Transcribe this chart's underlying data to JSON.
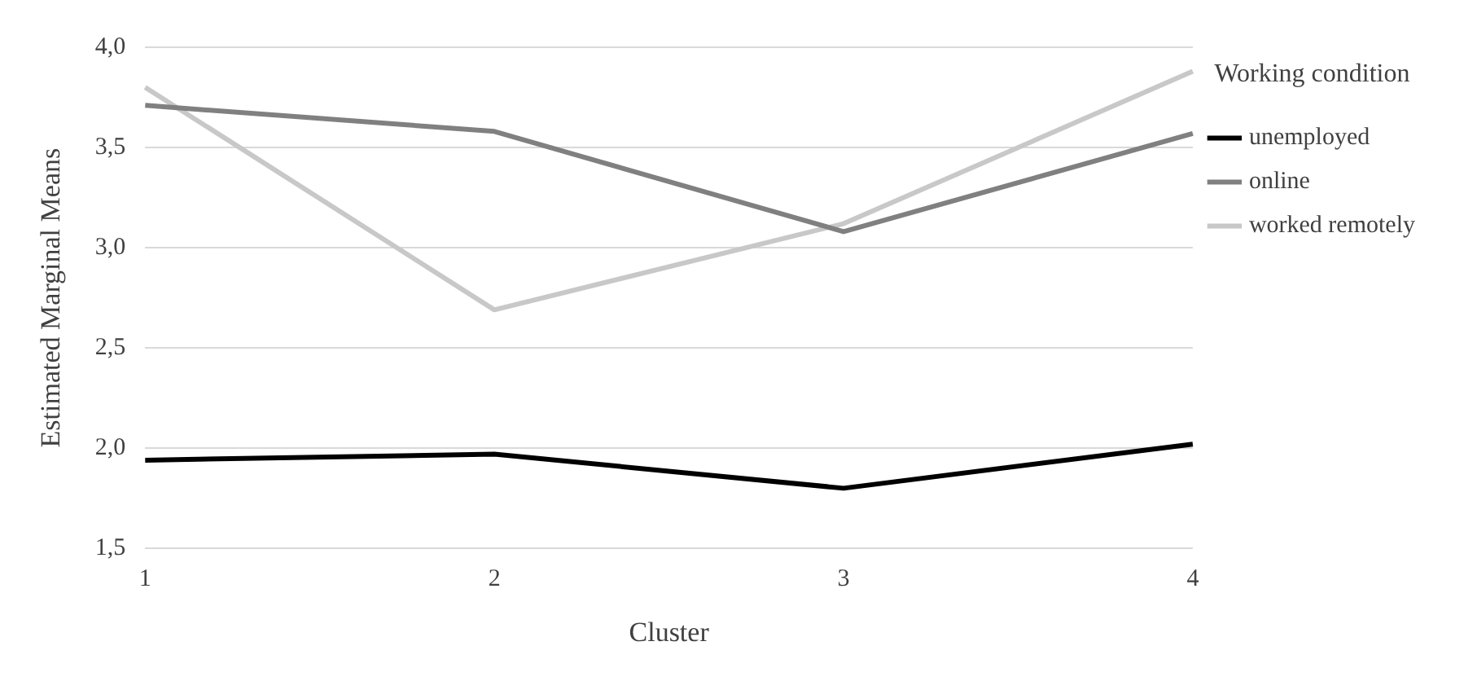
{
  "chart_data": {
    "type": "line",
    "xlabel": "Cluster",
    "ylabel": "Estimated Marginal Means",
    "legend_title": "Working condition",
    "categories": [
      "1",
      "2",
      "3",
      "4"
    ],
    "series": [
      {
        "name": "unemployed",
        "color": "#000000",
        "values": [
          1.94,
          1.97,
          1.8,
          2.02
        ]
      },
      {
        "name": "online",
        "color": "#808080",
        "values": [
          3.71,
          3.58,
          3.08,
          3.57
        ]
      },
      {
        "name": "worked remotely",
        "color": "#c8c8c8",
        "values": [
          3.8,
          2.69,
          3.12,
          3.88
        ]
      }
    ],
    "ylim": [
      1.5,
      4.0
    ],
    "yticks": [
      {
        "value": 1.5,
        "label": "1,5"
      },
      {
        "value": 2.0,
        "label": "2,0"
      },
      {
        "value": 2.5,
        "label": "2,5"
      },
      {
        "value": 3.0,
        "label": "3,0"
      },
      {
        "value": 3.5,
        "label": "3,5"
      },
      {
        "value": 4.0,
        "label": "4,0"
      }
    ],
    "grid": "y",
    "legend": "right",
    "marker": "none",
    "line_style": "solid"
  }
}
